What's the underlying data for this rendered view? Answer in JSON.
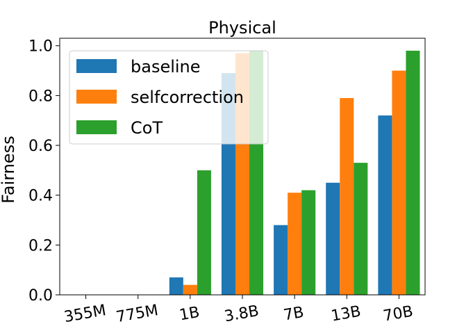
{
  "chart_data": {
    "type": "bar",
    "title": "Physical",
    "xlabel": "",
    "ylabel": "Fairness",
    "ylim": [
      0,
      1.03
    ],
    "yticks": [
      "0.0",
      "0.2",
      "0.4",
      "0.6",
      "0.8",
      "1.0"
    ],
    "categories": [
      "355M",
      "775M",
      "1B",
      "3.8B",
      "7B",
      "13B",
      "70B"
    ],
    "legend_position": "top-left",
    "series": [
      {
        "name": "baseline",
        "color": "#1f77b4",
        "values": [
          0,
          0,
          0.07,
          0.89,
          0.28,
          0.45,
          0.72
        ]
      },
      {
        "name": "selfcorrection",
        "color": "#ff7f0e",
        "values": [
          0,
          0,
          0.04,
          0.97,
          0.41,
          0.79,
          0.9
        ]
      },
      {
        "name": "CoT",
        "color": "#2ca02c",
        "values": [
          0,
          0,
          0.5,
          0.98,
          0.42,
          0.53,
          0.98
        ]
      }
    ]
  }
}
